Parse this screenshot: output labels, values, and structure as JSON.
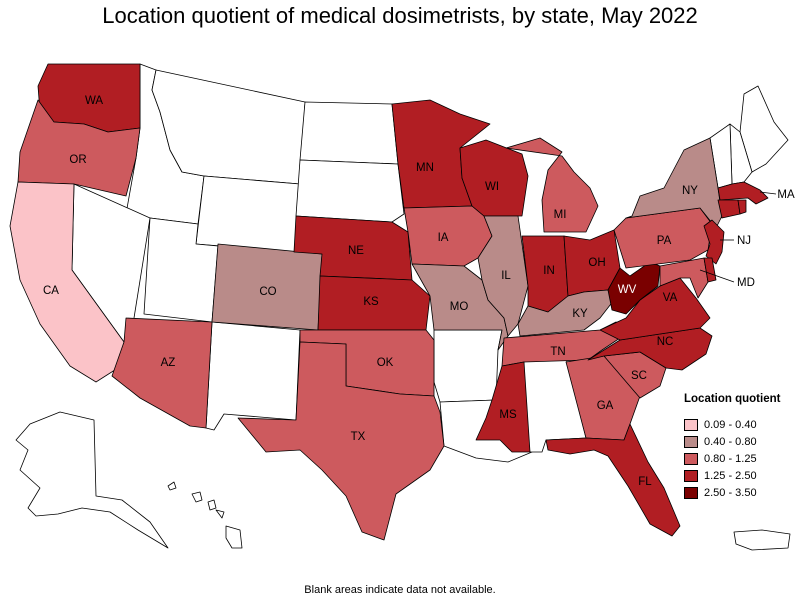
{
  "title": "Location quotient of medical dosimetrists, by state, May 2022",
  "footnote": "Blank areas indicate data not available.",
  "legend": {
    "title": "Location quotient",
    "items": [
      {
        "label": "0.09 - 0.40",
        "color": "#fbc3c8"
      },
      {
        "label": "0.40 - 0.80",
        "color": "#b98b89"
      },
      {
        "label": "0.80 - 1.25",
        "color": "#cd5a5e"
      },
      {
        "label": "1.25 - 2.50",
        "color": "#b11e23"
      },
      {
        "label": "2.50 - 3.50",
        "color": "#7a0000"
      }
    ]
  },
  "states": [
    {
      "abbr": "WA",
      "label": "WA",
      "class": "1.25 - 2.50"
    },
    {
      "abbr": "OR",
      "label": "OR",
      "class": "0.80 - 1.25"
    },
    {
      "abbr": "CA",
      "label": "CA",
      "class": "0.09 - 0.40"
    },
    {
      "abbr": "AZ",
      "label": "AZ",
      "class": "0.80 - 1.25"
    },
    {
      "abbr": "CO",
      "label": "CO",
      "class": "0.40 - 0.80"
    },
    {
      "abbr": "NE",
      "label": "NE",
      "class": "1.25 - 2.50"
    },
    {
      "abbr": "KS",
      "label": "KS",
      "class": "1.25 - 2.50"
    },
    {
      "abbr": "OK",
      "label": "OK",
      "class": "0.80 - 1.25"
    },
    {
      "abbr": "TX",
      "label": "TX",
      "class": "0.80 - 1.25"
    },
    {
      "abbr": "MN",
      "label": "MN",
      "class": "1.25 - 2.50"
    },
    {
      "abbr": "IA",
      "label": "IA",
      "class": "0.80 - 1.25"
    },
    {
      "abbr": "MO",
      "label": "MO",
      "class": "0.40 - 0.80"
    },
    {
      "abbr": "WI",
      "label": "WI",
      "class": "1.25 - 2.50"
    },
    {
      "abbr": "IL",
      "label": "IL",
      "class": "0.40 - 0.80"
    },
    {
      "abbr": "MI",
      "label": "MI",
      "class": "0.80 - 1.25"
    },
    {
      "abbr": "IN",
      "label": "IN",
      "class": "1.25 - 2.50"
    },
    {
      "abbr": "OH",
      "label": "OH",
      "class": "1.25 - 2.50"
    },
    {
      "abbr": "KY",
      "label": "KY",
      "class": "0.40 - 0.80"
    },
    {
      "abbr": "TN",
      "label": "TN",
      "class": "0.80 - 1.25"
    },
    {
      "abbr": "MS",
      "label": "MS",
      "class": "1.25 - 2.50"
    },
    {
      "abbr": "GA",
      "label": "GA",
      "class": "0.80 - 1.25"
    },
    {
      "abbr": "FL",
      "label": "FL",
      "class": "1.25 - 2.50"
    },
    {
      "abbr": "SC",
      "label": "SC",
      "class": "0.80 - 1.25"
    },
    {
      "abbr": "NC",
      "label": "NC",
      "class": "1.25 - 2.50"
    },
    {
      "abbr": "VA",
      "label": "VA",
      "class": "1.25 - 2.50"
    },
    {
      "abbr": "WV",
      "label": "WV",
      "class": "2.50 - 3.50"
    },
    {
      "abbr": "PA",
      "label": "PA",
      "class": "0.80 - 1.25"
    },
    {
      "abbr": "NY",
      "label": "NY",
      "class": "0.40 - 0.80"
    },
    {
      "abbr": "NJ",
      "label": "NJ",
      "class": "1.25 - 2.50"
    },
    {
      "abbr": "MD",
      "label": "MD",
      "class": "0.80 - 1.25"
    },
    {
      "abbr": "DE",
      "label": "",
      "class": "1.25 - 2.50"
    },
    {
      "abbr": "MA",
      "label": "MA",
      "class": "1.25 - 2.50"
    },
    {
      "abbr": "CT",
      "label": "",
      "class": "1.25 - 2.50"
    },
    {
      "abbr": "RI",
      "label": "",
      "class": "1.25 - 2.50"
    }
  ],
  "no_data_states": [
    "ID",
    "MT",
    "WY",
    "NV",
    "UT",
    "NM",
    "ND",
    "SD",
    "AR",
    "LA",
    "AL",
    "ME",
    "NH",
    "VT",
    "AK",
    "HI",
    "PR"
  ]
}
